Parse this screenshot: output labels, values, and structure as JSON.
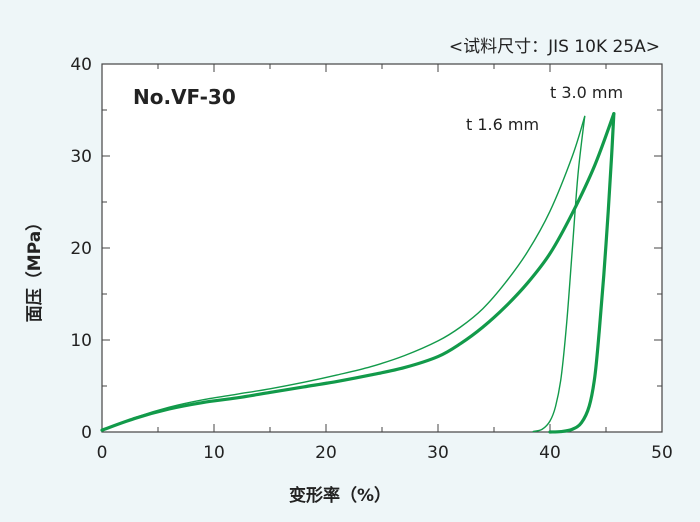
{
  "header": {
    "sample_size": "<试料尺寸：JIS 10K 25A>"
  },
  "plot": {
    "specimen": "No.VF-30"
  },
  "colors": {
    "curve": "#129a4a",
    "plot_bg": "#ffffff",
    "page_bg": "#eef6f8"
  },
  "chart_data": {
    "type": "line",
    "xlabel": "变形率（%）",
    "ylabel": "面压（MPa）",
    "xlim": [
      0,
      50
    ],
    "ylim": [
      0,
      40
    ],
    "xticks": [
      0,
      10,
      20,
      30,
      40,
      50
    ],
    "yticks": [
      0,
      10,
      20,
      30,
      40
    ],
    "grid": false,
    "series": [
      {
        "name": "t 1.6 mm",
        "loading": [
          [
            0,
            0.2
          ],
          [
            3,
            1.6
          ],
          [
            6,
            2.7
          ],
          [
            9,
            3.5
          ],
          [
            12,
            4.1
          ],
          [
            15,
            4.7
          ],
          [
            18,
            5.4
          ],
          [
            21,
            6.2
          ],
          [
            24,
            7.1
          ],
          [
            27,
            8.3
          ],
          [
            30,
            9.9
          ],
          [
            32,
            11.4
          ],
          [
            34,
            13.4
          ],
          [
            36,
            16.2
          ],
          [
            38,
            19.6
          ],
          [
            40,
            24.0
          ],
          [
            42,
            30.0
          ],
          [
            43.1,
            34.3
          ]
        ],
        "unloading": [
          [
            43.1,
            34.3
          ],
          [
            42.5,
            28.0
          ],
          [
            42,
            20.0
          ],
          [
            41.5,
            12.0
          ],
          [
            41,
            6.0
          ],
          [
            40.5,
            2.8
          ],
          [
            40,
            1.2
          ],
          [
            39.3,
            0.3
          ],
          [
            38.5,
            0.05
          ]
        ]
      },
      {
        "name": "t 3.0 mm",
        "loading": [
          [
            0,
            0.2
          ],
          [
            3,
            1.5
          ],
          [
            6,
            2.5
          ],
          [
            9,
            3.2
          ],
          [
            12,
            3.7
          ],
          [
            15,
            4.3
          ],
          [
            18,
            4.9
          ],
          [
            21,
            5.5
          ],
          [
            24,
            6.2
          ],
          [
            27,
            7.0
          ],
          [
            30,
            8.2
          ],
          [
            32,
            9.6
          ],
          [
            34,
            11.4
          ],
          [
            36,
            13.6
          ],
          [
            38,
            16.2
          ],
          [
            40,
            19.4
          ],
          [
            42,
            23.8
          ],
          [
            44,
            29.0
          ],
          [
            45.7,
            34.6
          ]
        ],
        "unloading": [
          [
            45.7,
            34.6
          ],
          [
            45.5,
            30.0
          ],
          [
            45.2,
            24.0
          ],
          [
            44.8,
            17.0
          ],
          [
            44.4,
            11.0
          ],
          [
            44.0,
            6.0
          ],
          [
            43.5,
            2.8
          ],
          [
            42.8,
            1.0
          ],
          [
            42.0,
            0.3
          ],
          [
            41.0,
            0.05
          ],
          [
            40.0,
            0.0
          ]
        ]
      }
    ]
  }
}
